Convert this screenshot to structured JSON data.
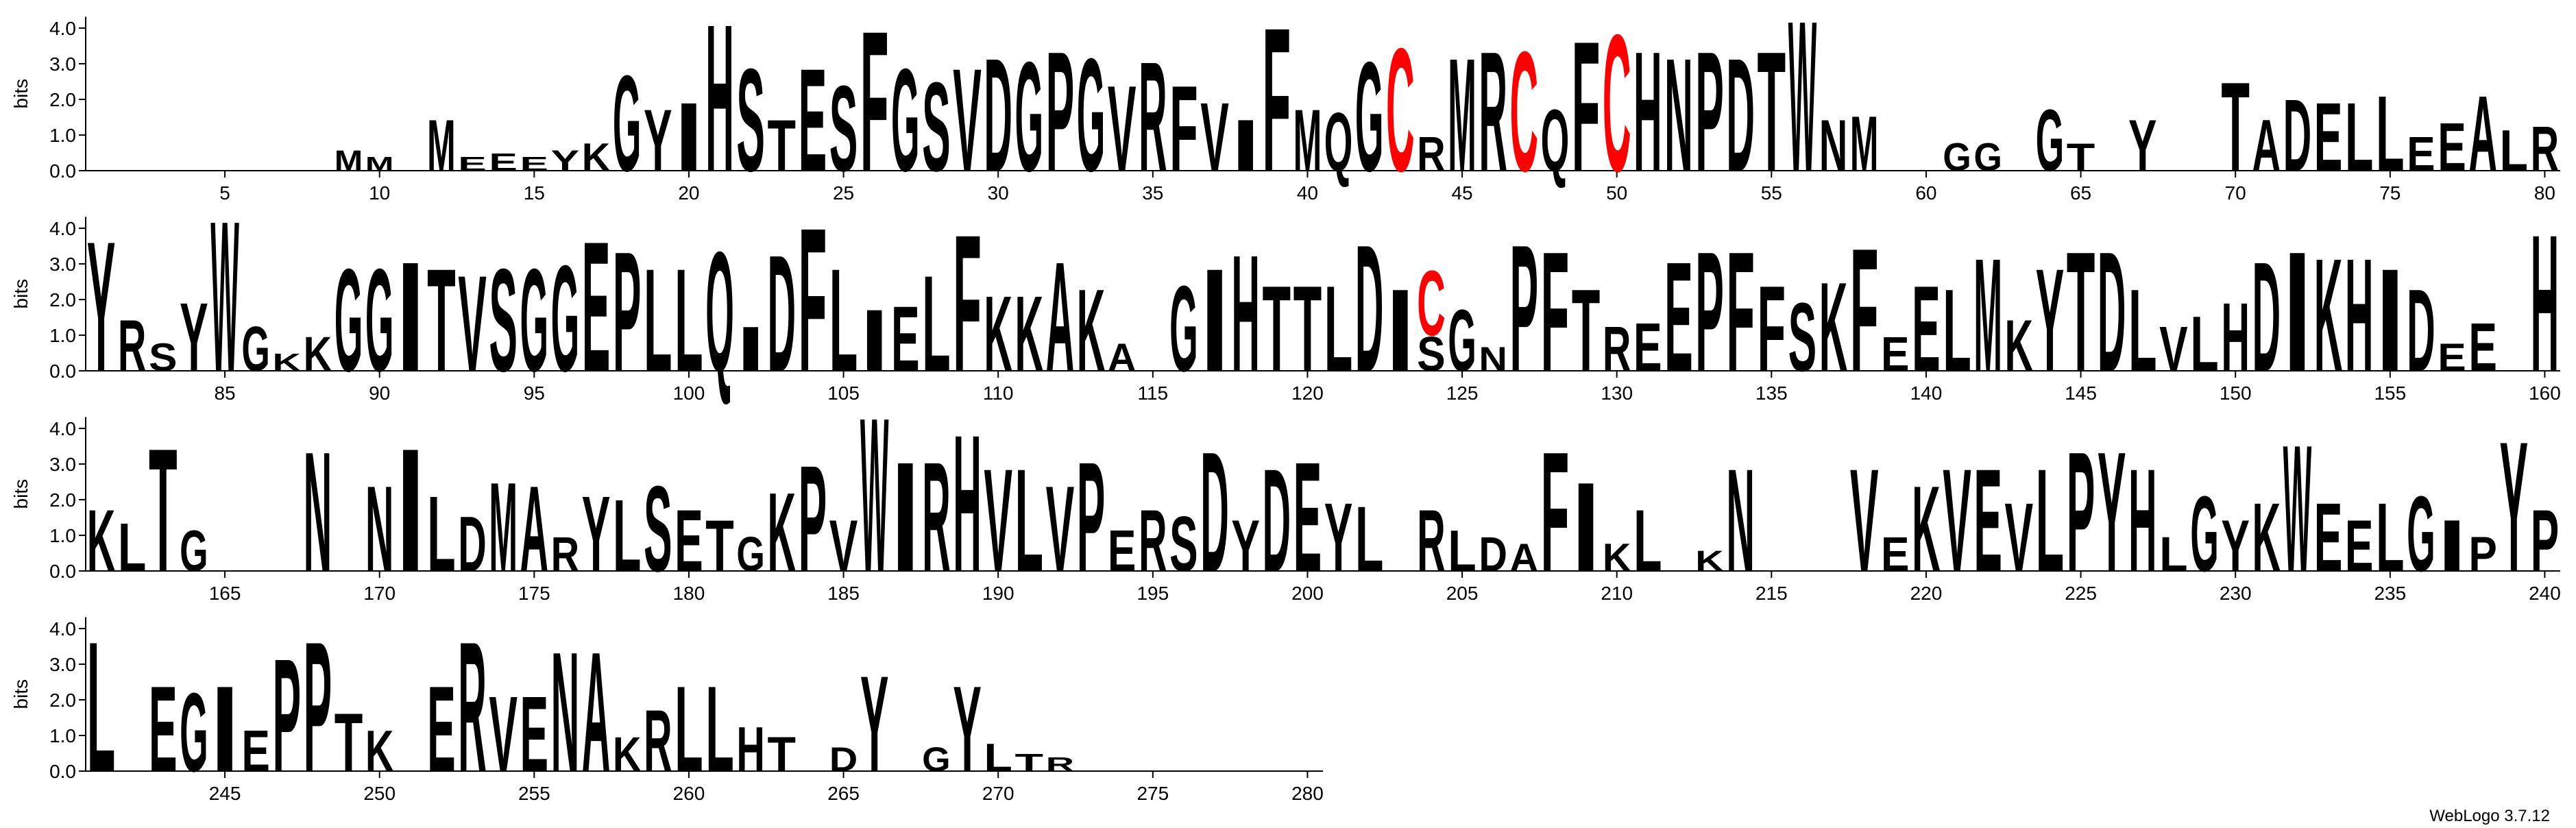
{
  "chart_data": {
    "type": "logo",
    "ylabel": "bits",
    "footer": "WebLogo 3.7.12",
    "color": "#000000",
    "letter_colors": {
      "C": "#ff0000"
    },
    "ylim": [
      0,
      4.32
    ],
    "yticks": [
      {
        "value": 0,
        "label": "0.0"
      },
      {
        "value": 1,
        "label": "1.0"
      },
      {
        "value": 2,
        "label": "2.0"
      },
      {
        "value": 3,
        "label": "3.0"
      },
      {
        "value": 4,
        "label": "4.0"
      }
    ],
    "xticks": [
      5,
      10,
      15,
      20,
      25,
      30,
      35,
      40,
      45,
      50,
      55,
      60,
      65,
      70,
      75,
      80,
      85,
      90,
      95,
      100,
      105,
      110,
      115,
      120,
      125,
      130,
      135,
      140,
      145,
      150,
      155,
      160,
      165,
      170,
      175,
      180,
      185,
      190,
      195,
      200,
      205,
      210,
      215,
      220,
      225,
      230,
      235,
      240,
      245,
      250,
      255,
      260,
      265,
      270,
      275,
      280
    ],
    "positions": [
      [],
      [],
      [],
      [],
      [],
      [],
      [],
      [],
      [
        [
          "M",
          0.6
        ]
      ],
      [
        [
          "M",
          0.4
        ]
      ],
      [],
      [
        [
          "M",
          1.5
        ]
      ],
      [
        [
          "E",
          0.4
        ]
      ],
      [
        [
          "E",
          0.5
        ]
      ],
      [
        [
          "E",
          0.4
        ]
      ],
      [
        [
          "Y",
          0.6
        ]
      ],
      [
        [
          "K",
          0.8
        ]
      ],
      [
        [
          "G",
          2.8
        ]
      ],
      [
        [
          "Y",
          1.8
        ]
      ],
      [
        [
          "I",
          2.0
        ]
      ],
      [
        [
          "H",
          4.3
        ]
      ],
      [
        [
          "S",
          3.0
        ]
      ],
      [
        [
          "T",
          1.5
        ]
      ],
      [
        [
          "E",
          3.0
        ]
      ],
      [
        [
          "S",
          2.5
        ]
      ],
      [
        [
          "F",
          4.1
        ]
      ],
      [
        [
          "G",
          3.0
        ]
      ],
      [
        [
          "S",
          2.6
        ]
      ],
      [
        [
          "V",
          3.0
        ]
      ],
      [
        [
          "D",
          3.3
        ]
      ],
      [
        [
          "G",
          3.2
        ]
      ],
      [
        [
          "P",
          3.5
        ]
      ],
      [
        [
          "G",
          3.3
        ]
      ],
      [
        [
          "V",
          2.5
        ]
      ],
      [
        [
          "R",
          3.2
        ]
      ],
      [
        [
          "F",
          2.5
        ]
      ],
      [
        [
          "V",
          2.0
        ]
      ],
      [
        [
          "I",
          1.5
        ]
      ],
      [
        [
          "F",
          4.2
        ]
      ],
      [
        [
          "M",
          1.8
        ]
      ],
      [
        [
          "Q",
          1.7
        ]
      ],
      [
        [
          "G",
          3.2
        ]
      ],
      [
        [
          "C",
          3.6
        ]
      ],
      [
        [
          "R",
          1.0
        ]
      ],
      [
        [
          "M",
          3.3
        ]
      ],
      [
        [
          "R",
          3.5
        ]
      ],
      [
        [
          "C",
          3.5
        ]
      ],
      [
        [
          "Q",
          1.8
        ]
      ],
      [
        [
          "F",
          3.8
        ]
      ],
      [
        [
          "C",
          4.0
        ]
      ],
      [
        [
          "H",
          3.5
        ]
      ],
      [
        [
          "N",
          3.3
        ]
      ],
      [
        [
          "P",
          3.5
        ]
      ],
      [
        [
          "D",
          3.3
        ]
      ],
      [
        [
          "T",
          3.5
        ]
      ],
      [
        [
          "W",
          4.4
        ]
      ],
      [
        [
          "N",
          1.5
        ]
      ],
      [
        [
          "M",
          1.6
        ]
      ],
      [],
      [],
      [
        [
          "G",
          0.8
        ]
      ],
      [
        [
          "G",
          0.8
        ]
      ],
      [],
      [
        [
          "G",
          1.8
        ]
      ],
      [
        [
          "T",
          0.8
        ]
      ],
      [],
      [
        [
          "Y",
          1.5
        ]
      ],
      [],
      [],
      [
        [
          "T",
          2.6
        ]
      ],
      [
        [
          "A",
          1.5
        ]
      ],
      [
        [
          "D",
          2.1
        ]
      ],
      [
        [
          "E",
          2.0
        ]
      ],
      [
        [
          "L",
          2.0
        ]
      ],
      [
        [
          "L",
          2.2
        ]
      ],
      [
        [
          "E",
          1.0
        ]
      ],
      [
        [
          "E",
          1.4
        ]
      ],
      [
        [
          "A",
          2.2
        ]
      ],
      [
        [
          "L",
          1.2
        ]
      ],
      [
        [
          "R",
          1.3
        ]
      ],
      [
        [
          "Y",
          3.8
        ]
      ],
      [
        [
          "R",
          1.5
        ]
      ],
      [
        [
          "S",
          0.8
        ]
      ],
      [
        [
          "Y",
          2.0
        ]
      ],
      [
        [
          "W",
          4.4
        ]
      ],
      [
        [
          "G",
          1.3
        ]
      ],
      [
        [
          "K",
          0.5
        ]
      ],
      [
        [
          "K",
          1.0
        ]
      ],
      [
        [
          "G",
          3.0
        ]
      ],
      [
        [
          "G",
          3.0
        ]
      ],
      [
        [
          "I",
          3.2
        ]
      ],
      [
        [
          "T",
          3.0
        ]
      ],
      [
        [
          "V",
          2.8
        ]
      ],
      [
        [
          "S",
          3.0
        ]
      ],
      [
        [
          "G",
          3.0
        ]
      ],
      [
        [
          "G",
          3.1
        ]
      ],
      [
        [
          "E",
          3.8
        ]
      ],
      [
        [
          "P",
          3.5
        ]
      ],
      [
        [
          "L",
          3.0
        ]
      ],
      [
        [
          "L",
          3.0
        ]
      ],
      [
        [
          "Q",
          3.5
        ]
      ],
      [
        [
          "I",
          1.3
        ]
      ],
      [
        [
          "D",
          3.4
        ]
      ],
      [
        [
          "F",
          4.2
        ]
      ],
      [
        [
          "L",
          3.0
        ]
      ],
      [
        [
          "I",
          1.8
        ]
      ],
      [
        [
          "E",
          1.9
        ]
      ],
      [
        [
          "L",
          2.8
        ]
      ],
      [
        [
          "F",
          4.0
        ]
      ],
      [
        [
          "K",
          2.2
        ]
      ],
      [
        [
          "K",
          2.2
        ]
      ],
      [
        [
          "A",
          3.2
        ]
      ],
      [
        [
          "K",
          2.4
        ]
      ],
      [
        [
          "A",
          0.8
        ]
      ],
      [],
      [
        [
          "G",
          2.5
        ]
      ],
      [
        [
          "I",
          3.0
        ]
      ],
      [
        [
          "H",
          3.4
        ]
      ],
      [
        [
          "T",
          2.5
        ]
      ],
      [
        [
          "T",
          2.5
        ]
      ],
      [
        [
          "L",
          2.5
        ]
      ],
      [
        [
          "D",
          3.7
        ]
      ],
      [
        [
          "I",
          2.4
        ]
      ],
      [
        [
          "S",
          1.0
        ],
        [
          "C",
          1.9
        ]
      ],
      [
        [
          "G",
          1.8
        ]
      ],
      [
        [
          "N",
          0.7
        ]
      ],
      [
        [
          "P",
          3.7
        ]
      ],
      [
        [
          "F",
          3.5
        ]
      ],
      [
        [
          "T",
          2.4
        ]
      ],
      [
        [
          "R",
          1.3
        ]
      ],
      [
        [
          "E",
          1.4
        ]
      ],
      [
        [
          "E",
          3.2
        ]
      ],
      [
        [
          "P",
          3.5
        ]
      ],
      [
        [
          "F",
          3.5
        ]
      ],
      [
        [
          "F",
          2.5
        ]
      ],
      [
        [
          "S",
          2.0
        ]
      ],
      [
        [
          "K",
          2.6
        ]
      ],
      [
        [
          "F",
          3.6
        ]
      ],
      [
        [
          "E",
          1.0
        ]
      ],
      [
        [
          "E",
          2.5
        ]
      ],
      [
        [
          "L",
          2.4
        ]
      ],
      [
        [
          "M",
          3.3
        ]
      ],
      [
        [
          "K",
          1.5
        ]
      ],
      [
        [
          "Y",
          3.0
        ]
      ],
      [
        [
          "T",
          3.5
        ]
      ],
      [
        [
          "D",
          3.5
        ]
      ],
      [
        [
          "L",
          2.4
        ]
      ],
      [
        [
          "V",
          1.3
        ]
      ],
      [
        [
          "L",
          1.6
        ]
      ],
      [
        [
          "H",
          2.0
        ]
      ],
      [
        [
          "D",
          3.2
        ]
      ],
      [
        [
          "I",
          3.5
        ]
      ],
      [
        [
          "K",
          3.3
        ]
      ],
      [
        [
          "H",
          3.3
        ]
      ],
      [
        [
          "I",
          3.0
        ]
      ],
      [
        [
          "D",
          2.4
        ]
      ],
      [
        [
          "E",
          0.8
        ]
      ],
      [
        [
          "E",
          1.4
        ]
      ],
      [],
      [
        [
          "H",
          4.0
        ]
      ],
      [
        [
          "K",
          1.8
        ]
      ],
      [
        [
          "L",
          1.4
        ]
      ],
      [
        [
          "T",
          3.6
        ]
      ],
      [
        [
          "G",
          1.2
        ]
      ],
      [],
      [],
      [],
      [
        [
          "N",
          3.5
        ]
      ],
      [],
      [
        [
          "N",
          2.5
        ]
      ],
      [
        [
          "I",
          3.6
        ]
      ],
      [
        [
          "L",
          2.2
        ]
      ],
      [
        [
          "D",
          1.6
        ]
      ],
      [
        [
          "M",
          2.6
        ]
      ],
      [
        [
          "A",
          2.5
        ]
      ],
      [
        [
          "R",
          1.0
        ]
      ],
      [
        [
          "Y",
          2.2
        ]
      ],
      [
        [
          "L",
          2.1
        ]
      ],
      [
        [
          "S",
          2.5
        ]
      ],
      [
        [
          "E",
          1.8
        ]
      ],
      [
        [
          "T",
          1.5
        ]
      ],
      [
        [
          "G",
          1.0
        ]
      ],
      [
        [
          "K",
          2.3
        ]
      ],
      [
        [
          "P",
          3.1
        ]
      ],
      [
        [
          "V",
          1.5
        ]
      ],
      [
        [
          "W",
          4.5
        ]
      ],
      [
        [
          "I",
          3.2
        ]
      ],
      [
        [
          "R",
          3.2
        ]
      ],
      [
        [
          "H",
          4.0
        ]
      ],
      [
        [
          "V",
          3.0
        ]
      ],
      [
        [
          "L",
          3.0
        ]
      ],
      [
        [
          "V",
          2.5
        ]
      ],
      [
        [
          "P",
          3.2
        ]
      ],
      [
        [
          "E",
          1.2
        ]
      ],
      [
        [
          "R",
          1.8
        ]
      ],
      [
        [
          "S",
          1.6
        ]
      ],
      [
        [
          "D",
          3.5
        ]
      ],
      [
        [
          "Y",
          1.5
        ]
      ],
      [
        [
          "D",
          3.0
        ]
      ],
      [
        [
          "E",
          3.2
        ]
      ],
      [
        [
          "Y",
          2.0
        ]
      ],
      [
        [
          "L",
          1.9
        ]
      ],
      [],
      [
        [
          "R",
          1.8
        ]
      ],
      [
        [
          "L",
          1.2
        ]
      ],
      [
        [
          "D",
          1.0
        ]
      ],
      [
        [
          "A",
          0.8
        ]
      ],
      [
        [
          "F",
          3.5
        ]
      ],
      [
        [
          "I",
          2.6
        ]
      ],
      [
        [
          "K",
          0.8
        ]
      ],
      [
        [
          "L",
          1.8
        ]
      ],
      [],
      [
        [
          "K",
          0.6
        ]
      ],
      [
        [
          "N",
          3.0
        ]
      ],
      [],
      [],
      [],
      [
        [
          "V",
          3.0
        ]
      ],
      [
        [
          "E",
          1.0
        ]
      ],
      [
        [
          "K",
          2.5
        ]
      ],
      [
        [
          "V",
          3.0
        ]
      ],
      [
        [
          "E",
          3.0
        ]
      ],
      [
        [
          "V",
          2.0
        ]
      ],
      [
        [
          "L",
          3.0
        ]
      ],
      [
        [
          "P",
          3.5
        ]
      ],
      [
        [
          "Y",
          3.5
        ]
      ],
      [
        [
          "H",
          3.0
        ]
      ],
      [
        [
          "L",
          1.0
        ]
      ],
      [
        [
          "G",
          2.2
        ]
      ],
      [
        [
          "Y",
          1.5
        ]
      ],
      [
        [
          "K",
          2.0
        ]
      ],
      [
        [
          "W",
          3.7
        ]
      ],
      [
        [
          "E",
          2.0
        ]
      ],
      [
        [
          "E",
          1.5
        ]
      ],
      [
        [
          "L",
          2.0
        ]
      ],
      [
        [
          "G",
          2.2
        ]
      ],
      [
        [
          "I",
          1.5
        ]
      ],
      [
        [
          "P",
          1.0
        ]
      ],
      [
        [
          "Y",
          3.8
        ]
      ],
      [
        [
          "P",
          1.8
        ]
      ],
      [
        [
          "L",
          3.8
        ]
      ],
      [],
      [
        [
          "E",
          2.5
        ]
      ],
      [
        [
          "G",
          2.3
        ]
      ],
      [
        [
          "I",
          2.5
        ]
      ],
      [
        [
          "E",
          1.2
        ]
      ],
      [
        [
          "P",
          3.3
        ]
      ],
      [
        [
          "P",
          3.8
        ]
      ],
      [
        [
          "T",
          1.7
        ]
      ],
      [
        [
          "K",
          1.2
        ]
      ],
      [],
      [
        [
          "E",
          2.5
        ]
      ],
      [
        [
          "R",
          3.8
        ]
      ],
      [
        [
          "V",
          2.2
        ]
      ],
      [
        [
          "E",
          2.2
        ]
      ],
      [
        [
          "N",
          3.5
        ]
      ],
      [
        [
          "A",
          3.5
        ]
      ],
      [
        [
          "K",
          1.0
        ]
      ],
      [
        [
          "R",
          1.8
        ]
      ],
      [
        [
          "L",
          2.5
        ]
      ],
      [
        [
          "L",
          2.5
        ]
      ],
      [
        [
          "H",
          1.3
        ]
      ],
      [
        [
          "T",
          1.0
        ]
      ],
      [],
      [
        [
          "D",
          0.7
        ]
      ],
      [
        [
          "Y",
          2.8
        ]
      ],
      [],
      [
        [
          "G",
          0.7
        ]
      ],
      [
        [
          "Y",
          2.5
        ]
      ],
      [
        [
          "L",
          0.8
        ]
      ],
      [
        [
          "T",
          0.5
        ]
      ],
      [
        [
          "R",
          0.4
        ]
      ],
      [],
      [],
      [],
      [],
      [],
      [],
      [],
      []
    ]
  }
}
